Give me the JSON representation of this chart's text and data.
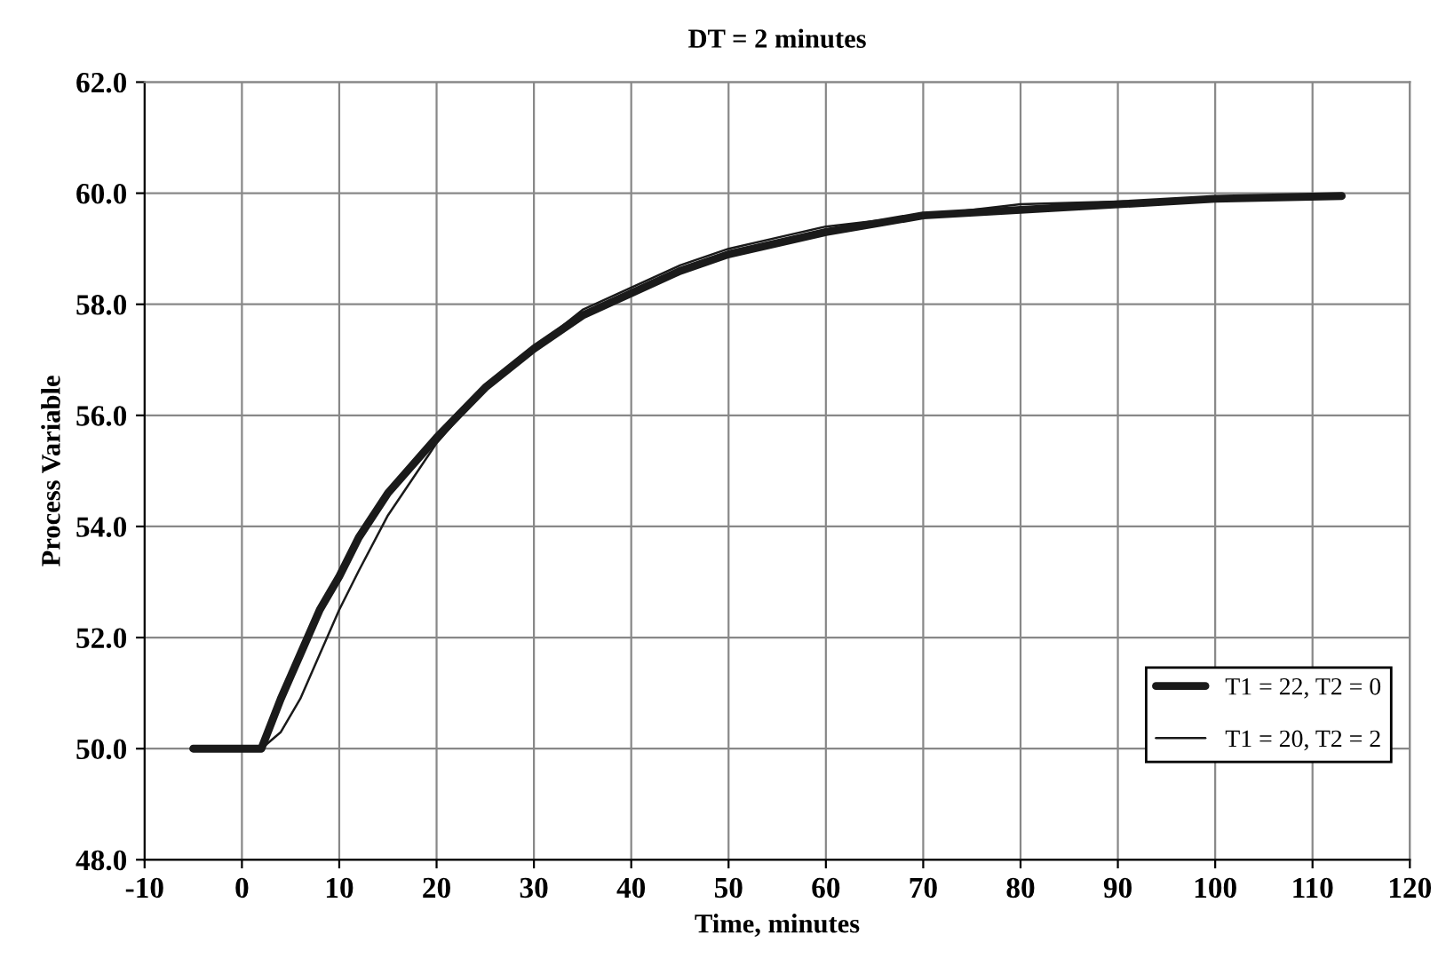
{
  "chart_data": {
    "type": "line",
    "title": "DT = 2 minutes",
    "xlabel": "Time, minutes",
    "ylabel": "Process Variable",
    "xlim": [
      -10,
      120
    ],
    "xticks": [
      -10,
      0,
      10,
      20,
      30,
      40,
      50,
      60,
      70,
      80,
      90,
      100,
      110,
      120
    ],
    "ylim": [
      48,
      62
    ],
    "yticks": [
      {
        "value": 48,
        "label": "48.0"
      },
      {
        "value": 50,
        "label": "50.0"
      },
      {
        "value": 52,
        "label": "52.0"
      },
      {
        "value": 54,
        "label": "54.0"
      },
      {
        "value": 56,
        "label": "56.0"
      },
      {
        "value": 58,
        "label": "58.0"
      },
      {
        "value": 60,
        "label": "60.0"
      },
      {
        "value": 62,
        "label": "62.0"
      }
    ],
    "grid": true,
    "legend": "lower right",
    "marker": "none",
    "line_style": "solid",
    "series": [
      {
        "name": "T1 = 22, T2 = 0",
        "color": "#1a1a1a",
        "x": [
          -5,
          2,
          4,
          6,
          8,
          10,
          12,
          15,
          20,
          25,
          30,
          35,
          40,
          45,
          50,
          55,
          60,
          70,
          80,
          90,
          100,
          113
        ],
        "values": [
          50,
          50,
          50.9,
          51.7,
          52.5,
          53.1,
          53.8,
          54.6,
          55.6,
          56.5,
          57.2,
          57.8,
          58.2,
          58.6,
          58.9,
          59.1,
          59.3,
          59.6,
          59.7,
          59.8,
          59.9,
          59.95
        ]
      },
      {
        "name": "T1 = 20, T2 = 2",
        "color": "#1a1a1a",
        "x": [
          -5,
          2,
          4,
          6,
          8,
          10,
          12,
          15,
          20,
          25,
          30,
          35,
          40,
          45,
          50,
          55,
          60,
          70,
          80,
          90,
          100,
          113
        ],
        "values": [
          50,
          50,
          50.3,
          50.9,
          51.7,
          52.5,
          53.2,
          54.2,
          55.5,
          56.5,
          57.2,
          57.9,
          58.3,
          58.7,
          59.0,
          59.2,
          59.4,
          59.6,
          59.8,
          59.85,
          59.9,
          59.95
        ]
      }
    ]
  }
}
